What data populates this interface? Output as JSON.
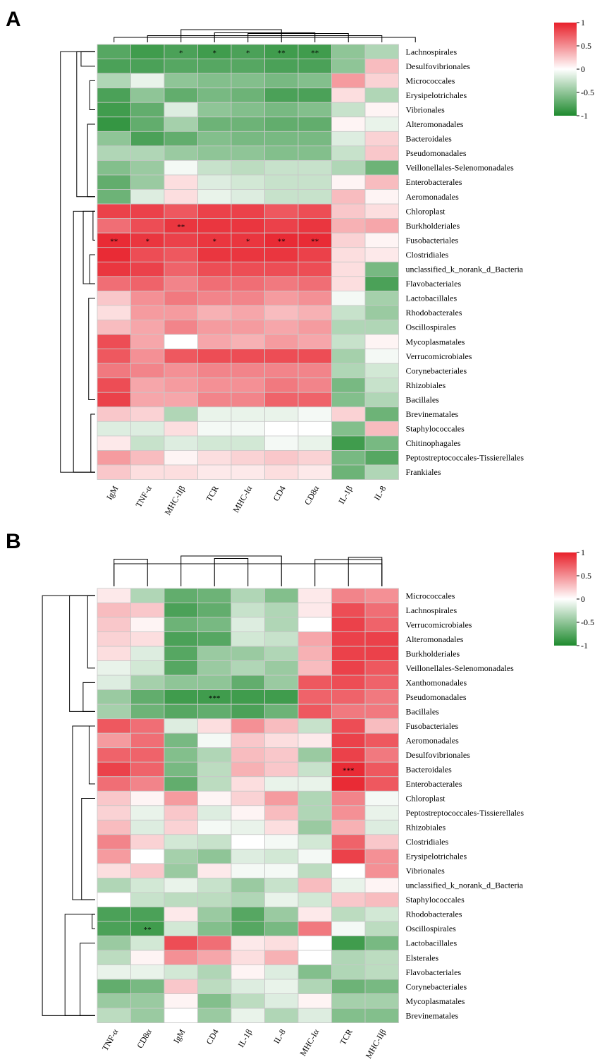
{
  "chart_data": [
    {
      "panel": "A",
      "type": "heatmap",
      "rows": [
        "Lachnospirales",
        "Desulfovibrionales",
        "Micrococcales",
        "Erysipelotrichales",
        "Vibrionales",
        "Alteromonadales",
        "Bacteroidales",
        "Pseudomonadales",
        "Veillonellales-Selenomonadales",
        "Enterobacterales",
        "Aeromonadales",
        "Chloroplast",
        "Burkholderiales",
        "Fusobacteriales",
        "Clostridiales",
        "unclassified_k_norank_d_Bacteria",
        "Flavobacteriales",
        "Lactobacillales",
        "Rhodobacterales",
        "Oscillospirales",
        "Mycoplasmatales",
        "Verrucomicrobiales",
        "Corynebacteriales",
        "Rhizobiales",
        "Bacillales",
        "Brevinematales",
        "Staphylococcales",
        "Chitinophagales",
        "Peptostreptococcales-Tissierellales",
        "Frankiales"
      ],
      "columns": [
        "IgM",
        "TNF-α",
        "MHC-IIβ",
        "TCR",
        "MHC-Iα",
        "CD4",
        "CD8α",
        "IL-1β",
        "IL-8"
      ],
      "values": [
        [
          -0.75,
          -0.85,
          -0.8,
          -0.85,
          -0.8,
          -0.85,
          -0.85,
          -0.5,
          -0.35
        ],
        [
          -0.8,
          -0.8,
          -0.75,
          -0.75,
          -0.75,
          -0.8,
          -0.8,
          -0.5,
          0.3
        ],
        [
          -0.35,
          -0.1,
          -0.5,
          -0.55,
          -0.55,
          -0.6,
          -0.55,
          0.45,
          0.2
        ],
        [
          -0.8,
          -0.5,
          -0.7,
          -0.6,
          -0.65,
          -0.8,
          -0.8,
          0.15,
          -0.35
        ],
        [
          -0.85,
          -0.7,
          -0.15,
          -0.5,
          -0.55,
          -0.6,
          -0.55,
          -0.25,
          0.05
        ],
        [
          -0.9,
          -0.7,
          -0.4,
          -0.65,
          -0.65,
          -0.7,
          -0.7,
          0.05,
          -0.1
        ],
        [
          -0.5,
          -0.8,
          -0.7,
          -0.55,
          -0.6,
          -0.6,
          -0.6,
          -0.15,
          0.2
        ],
        [
          -0.35,
          -0.35,
          -0.45,
          -0.5,
          -0.5,
          -0.55,
          -0.55,
          -0.25,
          0.25
        ],
        [
          -0.55,
          -0.45,
          -0.05,
          -0.25,
          -0.3,
          -0.25,
          -0.25,
          -0.35,
          -0.65
        ],
        [
          -0.7,
          -0.45,
          0.15,
          -0.15,
          -0.2,
          -0.25,
          -0.25,
          0.05,
          0.3
        ],
        [
          -0.65,
          -0.15,
          0.15,
          -0.1,
          -0.15,
          -0.25,
          -0.25,
          0.3,
          0.05
        ],
        [
          0.85,
          0.85,
          0.75,
          0.85,
          0.85,
          0.75,
          0.8,
          0.25,
          0.15
        ],
        [
          0.65,
          0.8,
          0.9,
          0.9,
          0.9,
          0.85,
          0.9,
          0.35,
          0.4
        ],
        [
          0.95,
          0.9,
          0.85,
          0.9,
          0.9,
          0.95,
          0.95,
          0.2,
          0.05
        ],
        [
          0.95,
          0.8,
          0.75,
          0.9,
          0.9,
          0.9,
          0.85,
          0.15,
          0.1
        ],
        [
          0.9,
          0.85,
          0.7,
          0.8,
          0.8,
          0.8,
          0.8,
          0.15,
          -0.6
        ],
        [
          0.65,
          0.7,
          0.55,
          0.65,
          0.65,
          0.6,
          0.65,
          0.15,
          -0.8
        ],
        [
          0.25,
          0.5,
          0.6,
          0.55,
          0.55,
          0.45,
          0.5,
          -0.05,
          -0.4
        ],
        [
          0.15,
          0.45,
          0.45,
          0.35,
          0.4,
          0.3,
          0.35,
          -0.25,
          -0.45
        ],
        [
          0.3,
          0.4,
          0.55,
          0.45,
          0.45,
          0.4,
          0.45,
          -0.35,
          -0.35
        ],
        [
          0.8,
          0.4,
          0.0,
          0.4,
          0.35,
          0.45,
          0.4,
          -0.25,
          0.05
        ],
        [
          0.75,
          0.5,
          0.75,
          0.8,
          0.8,
          0.8,
          0.8,
          -0.4,
          -0.05
        ],
        [
          0.6,
          0.55,
          0.5,
          0.55,
          0.55,
          0.55,
          0.55,
          -0.35,
          -0.2
        ],
        [
          0.8,
          0.4,
          0.45,
          0.5,
          0.5,
          0.6,
          0.55,
          -0.6,
          -0.25
        ],
        [
          0.85,
          0.4,
          0.4,
          0.55,
          0.55,
          0.7,
          0.7,
          -0.55,
          -0.35
        ],
        [
          0.25,
          0.2,
          -0.35,
          -0.1,
          -0.1,
          -0.1,
          -0.05,
          0.2,
          -0.65
        ],
        [
          -0.15,
          -0.15,
          0.15,
          -0.05,
          -0.05,
          0.0,
          0.0,
          -0.55,
          0.3
        ],
        [
          0.1,
          -0.25,
          -0.15,
          -0.2,
          -0.2,
          -0.05,
          -0.1,
          -0.85,
          -0.6
        ],
        [
          0.45,
          0.3,
          0.05,
          0.15,
          0.2,
          0.25,
          0.2,
          -0.6,
          -0.75
        ],
        [
          0.25,
          0.15,
          0.15,
          0.1,
          0.1,
          0.15,
          0.1,
          -0.65,
          -0.35
        ]
      ],
      "significance": [
        {
          "row": "Lachnospirales",
          "column": "MHC-IIβ",
          "mark": "*"
        },
        {
          "row": "Lachnospirales",
          "column": "TCR",
          "mark": "*"
        },
        {
          "row": "Lachnospirales",
          "column": "MHC-Iα",
          "mark": "*"
        },
        {
          "row": "Lachnospirales",
          "column": "CD4",
          "mark": "**"
        },
        {
          "row": "Lachnospirales",
          "column": "CD8α",
          "mark": "**"
        },
        {
          "row": "Burkholderiales",
          "column": "MHC-IIβ",
          "mark": "**"
        },
        {
          "row": "Fusobacteriales",
          "column": "IgM",
          "mark": "**"
        },
        {
          "row": "Fusobacteriales",
          "column": "TNF-α",
          "mark": "*"
        },
        {
          "row": "Fusobacteriales",
          "column": "TCR",
          "mark": "*"
        },
        {
          "row": "Fusobacteriales",
          "column": "MHC-Iα",
          "mark": "*"
        },
        {
          "row": "Fusobacteriales",
          "column": "CD4",
          "mark": "**"
        },
        {
          "row": "Fusobacteriales",
          "column": "CD8α",
          "mark": "**"
        }
      ],
      "color_scale": {
        "min": -1,
        "max": 1,
        "low": "#1e8a2e",
        "mid": "#ffffff",
        "high": "#e8202a",
        "ticks": [
          "1",
          "0.5",
          "0",
          "-0.5",
          "-1"
        ]
      }
    },
    {
      "panel": "B",
      "type": "heatmap",
      "rows": [
        "Micrococcales",
        "Lachnospirales",
        "Verrucomicrobiales",
        "Alteromonadales",
        "Burkholderiales",
        "Veillonellales-Selenomonadales",
        "Xanthomonadales",
        "Pseudomonadales",
        "Bacillales",
        "Fusobacteriales",
        "Aeromonadales",
        "Desulfovibrionales",
        "Bacteroidales",
        "Enterobacterales",
        "Chloroplast",
        "Peptostreptococcales-Tissierellales",
        "Rhizobiales",
        "Clostridiales",
        "Erysipelotrichales",
        "Vibrionales",
        "unclassified_k_norank_d_Bacteria",
        "Staphylococcales",
        "Rhodobacterales",
        "Oscillospirales",
        "Lactobacillales",
        "Elsterales",
        "Flavobacteriales",
        "Corynebacteriales",
        "Mycoplasmatales",
        "Brevinematales"
      ],
      "columns": [
        "TNF-α",
        "CD8α",
        "IgM",
        "CD4",
        "IL-1β",
        "IL-8",
        "MHC-Iα",
        "TCR",
        "MHC-IIβ"
      ],
      "values": [
        [
          0.1,
          -0.35,
          -0.7,
          -0.65,
          -0.35,
          -0.55,
          0.1,
          0.55,
          0.5
        ],
        [
          0.3,
          0.25,
          -0.8,
          -0.7,
          -0.25,
          -0.35,
          0.1,
          0.8,
          0.65
        ],
        [
          0.25,
          0.05,
          -0.65,
          -0.6,
          -0.15,
          -0.35,
          0.0,
          0.85,
          0.7
        ],
        [
          0.2,
          0.15,
          -0.8,
          -0.75,
          -0.2,
          -0.25,
          0.4,
          0.85,
          0.85
        ],
        [
          0.15,
          -0.15,
          -0.75,
          -0.45,
          -0.45,
          -0.35,
          0.35,
          0.85,
          0.85
        ],
        [
          -0.1,
          -0.2,
          -0.75,
          -0.45,
          -0.35,
          -0.45,
          0.3,
          0.85,
          0.75
        ],
        [
          -0.15,
          -0.4,
          -0.5,
          -0.5,
          -0.7,
          -0.45,
          0.75,
          0.8,
          0.7
        ],
        [
          -0.45,
          -0.7,
          -0.85,
          -0.85,
          -0.85,
          -0.85,
          0.7,
          0.7,
          0.6
        ],
        [
          -0.4,
          -0.65,
          -0.75,
          -0.7,
          -0.8,
          -0.65,
          0.75,
          0.6,
          0.6
        ],
        [
          0.75,
          0.65,
          -0.15,
          0.15,
          0.5,
          0.3,
          -0.25,
          0.8,
          0.3
        ],
        [
          0.45,
          0.65,
          -0.6,
          -0.05,
          0.25,
          0.15,
          0.1,
          0.85,
          0.75
        ],
        [
          0.7,
          0.7,
          -0.55,
          -0.35,
          0.3,
          0.25,
          -0.45,
          0.85,
          0.6
        ],
        [
          0.85,
          0.7,
          -0.6,
          -0.3,
          0.35,
          0.25,
          -0.25,
          0.95,
          0.75
        ],
        [
          0.65,
          0.55,
          -0.7,
          -0.3,
          0.15,
          -0.1,
          -0.1,
          0.95,
          0.75
        ],
        [
          0.25,
          0.05,
          0.45,
          0.05,
          0.2,
          0.45,
          -0.35,
          0.55,
          -0.05
        ],
        [
          0.2,
          -0.1,
          0.25,
          -0.15,
          0.05,
          0.3,
          -0.35,
          0.5,
          -0.1
        ],
        [
          0.3,
          -0.15,
          0.2,
          -0.05,
          -0.1,
          0.15,
          -0.45,
          0.35,
          -0.15
        ],
        [
          0.55,
          0.2,
          -0.2,
          -0.25,
          0.0,
          -0.05,
          -0.2,
          0.7,
          0.25
        ],
        [
          0.45,
          0.0,
          -0.4,
          -0.5,
          -0.15,
          -0.2,
          -0.05,
          0.85,
          0.5
        ],
        [
          0.15,
          0.25,
          -0.45,
          0.1,
          -0.05,
          -0.05,
          -0.3,
          0.0,
          0.5
        ],
        [
          -0.35,
          -0.2,
          -0.1,
          -0.25,
          -0.45,
          -0.25,
          0.3,
          -0.1,
          0.05
        ],
        [
          0.0,
          -0.25,
          -0.3,
          -0.3,
          -0.35,
          -0.1,
          -0.2,
          0.25,
          0.3
        ],
        [
          -0.8,
          -0.8,
          0.1,
          -0.45,
          -0.75,
          -0.45,
          0.1,
          -0.3,
          -0.2
        ],
        [
          -0.8,
          -0.85,
          -0.2,
          -0.55,
          -0.75,
          -0.6,
          0.6,
          -0.05,
          -0.3
        ],
        [
          -0.45,
          -0.2,
          0.8,
          0.65,
          0.1,
          0.15,
          0.0,
          -0.85,
          -0.6
        ],
        [
          -0.3,
          0.05,
          0.5,
          0.4,
          0.15,
          0.35,
          0.0,
          -0.35,
          -0.3
        ],
        [
          -0.1,
          -0.1,
          -0.2,
          -0.35,
          0.05,
          -0.15,
          -0.55,
          -0.35,
          -0.3
        ],
        [
          -0.7,
          -0.6,
          0.25,
          -0.3,
          -0.15,
          -0.1,
          -0.35,
          -0.65,
          -0.6
        ],
        [
          -0.45,
          -0.45,
          0.05,
          -0.55,
          -0.3,
          -0.15,
          0.05,
          -0.4,
          -0.4
        ],
        [
          -0.3,
          -0.45,
          0.0,
          -0.45,
          -0.1,
          -0.35,
          -0.15,
          -0.55,
          -0.55
        ]
      ],
      "significance": [
        {
          "row": "Pseudomonadales",
          "column": "CD4",
          "mark": "***"
        },
        {
          "row": "Bacteroidales",
          "column": "TCR",
          "mark": "***"
        },
        {
          "row": "Oscillospirales",
          "column": "CD8α",
          "mark": "**"
        }
      ],
      "color_scale": {
        "min": -1,
        "max": 1,
        "low": "#1e8a2e",
        "mid": "#ffffff",
        "high": "#e8202a",
        "ticks": [
          "1",
          "0.5",
          "0",
          "-0.5",
          "-1"
        ]
      }
    }
  ]
}
